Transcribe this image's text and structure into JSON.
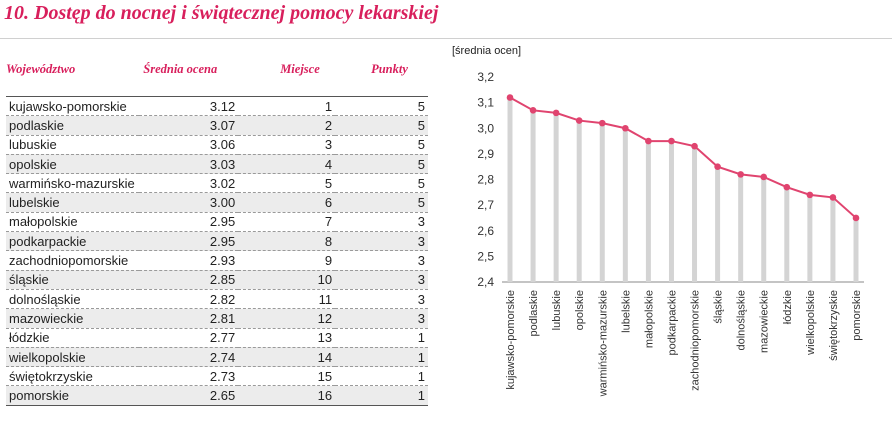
{
  "title": "10. Dostęp do nocnej i świątecznej pomocy lekarskiej",
  "table": {
    "headers": [
      "Województwo",
      "Średnia ocena",
      "Miejsce",
      "Punkty"
    ],
    "rows": [
      [
        "kujawsko-pomorskie",
        "3.12",
        "1",
        "5"
      ],
      [
        "podlaskie",
        "3.07",
        "2",
        "5"
      ],
      [
        "lubuskie",
        "3.06",
        "3",
        "5"
      ],
      [
        "opolskie",
        "3.03",
        "4",
        "5"
      ],
      [
        "warmińsko-mazurskie",
        "3.02",
        "5",
        "5"
      ],
      [
        "lubelskie",
        "3.00",
        "6",
        "5"
      ],
      [
        "małopolskie",
        "2.95",
        "7",
        "3"
      ],
      [
        "podkarpackie",
        "2.95",
        "8",
        "3"
      ],
      [
        "zachodniopomorskie",
        "2.93",
        "9",
        "3"
      ],
      [
        "śląskie",
        "2.85",
        "10",
        "3"
      ],
      [
        "dolnośląskie",
        "2.82",
        "11",
        "3"
      ],
      [
        "mazowieckie",
        "2.81",
        "12",
        "3"
      ],
      [
        "łódzkie",
        "2.77",
        "13",
        "1"
      ],
      [
        "wielkopolskie",
        "2.74",
        "14",
        "1"
      ],
      [
        "świętokrzyskie",
        "2.73",
        "15",
        "1"
      ],
      [
        "pomorskie",
        "2.65",
        "16",
        "1"
      ]
    ]
  },
  "chart_data": {
    "type": "line",
    "ylabel": "[średnia ocen]",
    "categories": [
      "kujawsko-pomorskie",
      "podlaskie",
      "lubuskie",
      "opolskie",
      "warmińsko-mazurskie",
      "lubelskie",
      "małopolskie",
      "podkarpackie",
      "zachodniopomorskie",
      "śląskie",
      "dolnośląskie",
      "mazowieckie",
      "łódzkie",
      "wielkopolskie",
      "świętokrzyskie",
      "pomorskie"
    ],
    "values": [
      3.12,
      3.07,
      3.06,
      3.03,
      3.02,
      3.0,
      2.95,
      2.95,
      2.93,
      2.85,
      2.82,
      2.81,
      2.77,
      2.74,
      2.73,
      2.65
    ],
    "ylim": [
      2.4,
      3.2
    ],
    "yticks": [
      "2,4",
      "2,5",
      "2,6",
      "2,7",
      "2,8",
      "2,9",
      "3,0",
      "3,1",
      "3,2"
    ],
    "grid": false,
    "line_color": "#e0446f",
    "stem_color": "#d4d4d4"
  }
}
